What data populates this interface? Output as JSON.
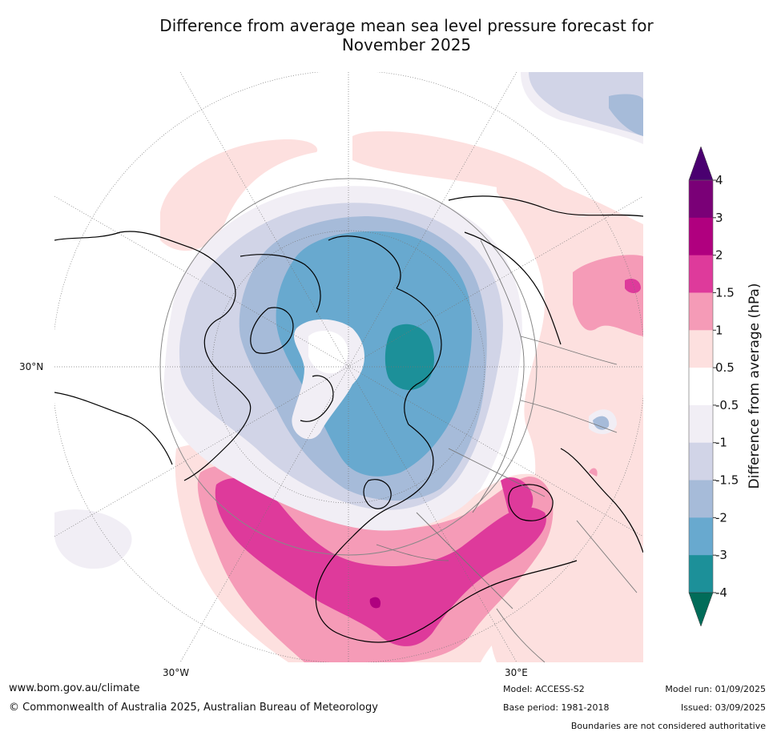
{
  "title_line1": "Difference from average mean sea level pressure forecast for",
  "title_line2": "November 2025",
  "map": {
    "lat_label": "30°N",
    "lon_labels": [
      "30°W",
      "30°E"
    ]
  },
  "colorbar": {
    "label": "Difference from average (hPa)",
    "ticks": [
      "4",
      "3",
      "2",
      "1.5",
      "1",
      "0.5",
      "-0.5",
      "-1",
      "-1.5",
      "-2",
      "-3",
      "-4"
    ],
    "colors_top_to_bottom": [
      "#4a0070",
      "#7a0077",
      "#b0007f",
      "#de3a9b",
      "#f59bb7",
      "#fde0df",
      "#ffffff",
      "#f1eef5",
      "#d1d4e7",
      "#a6bbd9",
      "#68a9cf",
      "#1c9099",
      "#016c59"
    ]
  },
  "footer": {
    "website": "www.bom.gov.au/climate",
    "copyright": "© Commonwealth of Australia 2025, Australian Bureau of Meteorology",
    "model": "Model: ACCESS-S2",
    "base_period": "Base period: 1981-2018",
    "model_run": "Model run: 01/09/2025",
    "issued": "Issued: 03/09/2025",
    "boundaries": "Boundaries are not considered authoritative"
  }
}
